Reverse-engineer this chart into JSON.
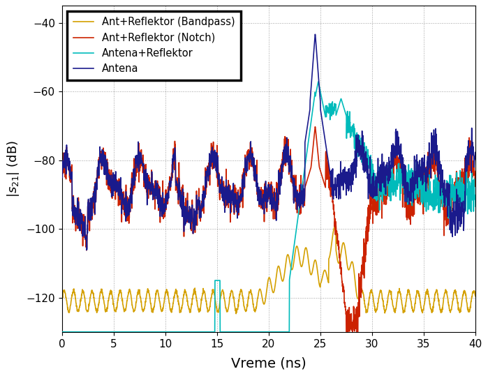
{
  "title": "",
  "xlabel": "Vreme (ns)",
  "ylabel": "$|s_{21}|$ (dB)",
  "xlim": [
    0,
    40
  ],
  "ylim": [
    -130,
    -35
  ],
  "yticks": [
    -120,
    -100,
    -80,
    -60,
    -40
  ],
  "xticks": [
    0,
    5,
    10,
    15,
    20,
    25,
    30,
    35,
    40
  ],
  "colors": {
    "antena": "#1A1A8C",
    "antena_reflektor": "#00BBBB",
    "notch": "#CC2200",
    "bandpass": "#D4A000"
  },
  "figsize": [
    6.99,
    5.39
  ],
  "dpi": 100
}
